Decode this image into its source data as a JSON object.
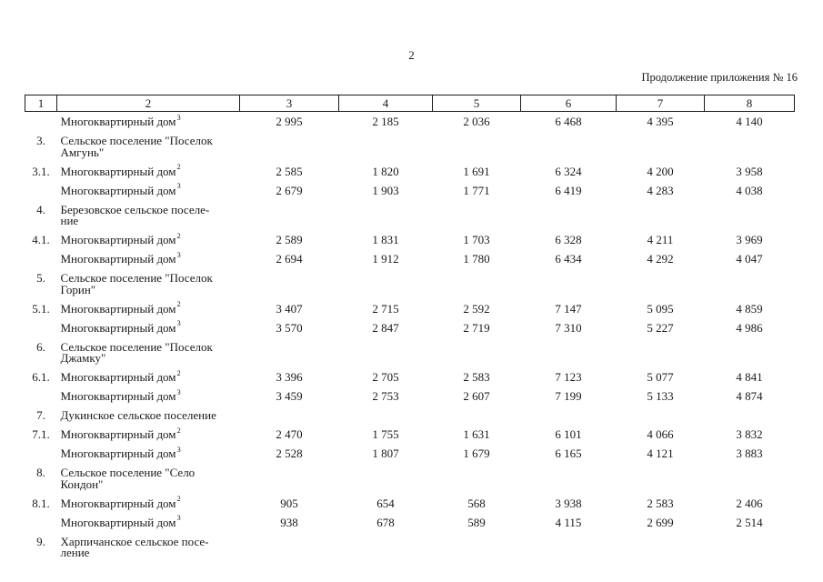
{
  "page": {
    "number": "2",
    "continuation": "Продолжение приложения № 16"
  },
  "table": {
    "header": [
      "1",
      "2",
      "3",
      "4",
      "5",
      "6",
      "7",
      "8"
    ],
    "rows": [
      {
        "num": "",
        "lines": [
          "Многоквартирный дом"
        ],
        "sup": "3",
        "values": [
          "2 995",
          "2 185",
          "2 036",
          "6 468",
          "4 395",
          "4 140"
        ]
      },
      {
        "num": "3.",
        "lines": [
          "Сельское поселение \"Поселок",
          "Амгунь\""
        ],
        "sup": "",
        "values": []
      },
      {
        "num": "3.1.",
        "lines": [
          "Многоквартирный дом"
        ],
        "sup": "2",
        "values": [
          "2 585",
          "1 820",
          "1 691",
          "6 324",
          "4 200",
          "3 958"
        ]
      },
      {
        "num": "",
        "lines": [
          "Многоквартирный дом"
        ],
        "sup": "3",
        "values": [
          "2 679",
          "1 903",
          "1 771",
          "6 419",
          "4 283",
          "4 038"
        ]
      },
      {
        "num": "4.",
        "lines": [
          "Березовское сельское поселе-",
          "ние"
        ],
        "sup": "",
        "values": []
      },
      {
        "num": "4.1.",
        "lines": [
          "Многоквартирный дом"
        ],
        "sup": "2",
        "values": [
          "2 589",
          "1 831",
          "1 703",
          "6 328",
          "4 211",
          "3 969"
        ]
      },
      {
        "num": "",
        "lines": [
          "Многоквартирный дом"
        ],
        "sup": "3",
        "values": [
          "2 694",
          "1 912",
          "1 780",
          "6 434",
          "4 292",
          "4 047"
        ]
      },
      {
        "num": "5.",
        "lines": [
          "Сельское поселение \"Поселок",
          "Горин\""
        ],
        "sup": "",
        "values": []
      },
      {
        "num": "5.1.",
        "lines": [
          "Многоквартирный дом"
        ],
        "sup": "2",
        "values": [
          "3 407",
          "2 715",
          "2 592",
          "7 147",
          "5 095",
          "4 859"
        ]
      },
      {
        "num": "",
        "lines": [
          "Многоквартирный дом"
        ],
        "sup": "3",
        "values": [
          "3 570",
          "2 847",
          "2 719",
          "7 310",
          "5 227",
          "4 986"
        ]
      },
      {
        "num": "6.",
        "lines": [
          "Сельское поселение \"Поселок",
          "Джамку\""
        ],
        "sup": "",
        "values": []
      },
      {
        "num": "6.1.",
        "lines": [
          "Многоквартирный дом"
        ],
        "sup": "2",
        "values": [
          "3 396",
          "2 705",
          "2 583",
          "7 123",
          "5 077",
          "4 841"
        ]
      },
      {
        "num": "",
        "lines": [
          "Многоквартирный дом"
        ],
        "sup": "3",
        "values": [
          "3 459",
          "2 753",
          "2 607",
          "7 199",
          "5 133",
          "4 874"
        ]
      },
      {
        "num": "7.",
        "lines": [
          "Дукинское сельское поселение"
        ],
        "sup": "",
        "values": []
      },
      {
        "num": "7.1.",
        "lines": [
          "Многоквартирный дом"
        ],
        "sup": "2",
        "values": [
          "2 470",
          "1 755",
          "1 631",
          "6 101",
          "4 066",
          "3 832"
        ]
      },
      {
        "num": "",
        "lines": [
          "Многоквартирный дом"
        ],
        "sup": "3",
        "values": [
          "2 528",
          "1 807",
          "1 679",
          "6 165",
          "4 121",
          "3 883"
        ]
      },
      {
        "num": "8.",
        "lines": [
          "Сельское поселение \"Село",
          "Кондон\""
        ],
        "sup": "",
        "values": []
      },
      {
        "num": "8.1.",
        "lines": [
          "Многоквартирный дом"
        ],
        "sup": "2",
        "values": [
          "905",
          "654",
          "568",
          "3 938",
          "2 583",
          "2 406"
        ]
      },
      {
        "num": "",
        "lines": [
          "Многоквартирный дом"
        ],
        "sup": "3",
        "values": [
          "938",
          "678",
          "589",
          "4 115",
          "2 699",
          "2 514"
        ]
      },
      {
        "num": "9.",
        "lines": [
          "Харпичанское сельское посе-",
          "ление"
        ],
        "sup": "",
        "values": []
      }
    ]
  }
}
